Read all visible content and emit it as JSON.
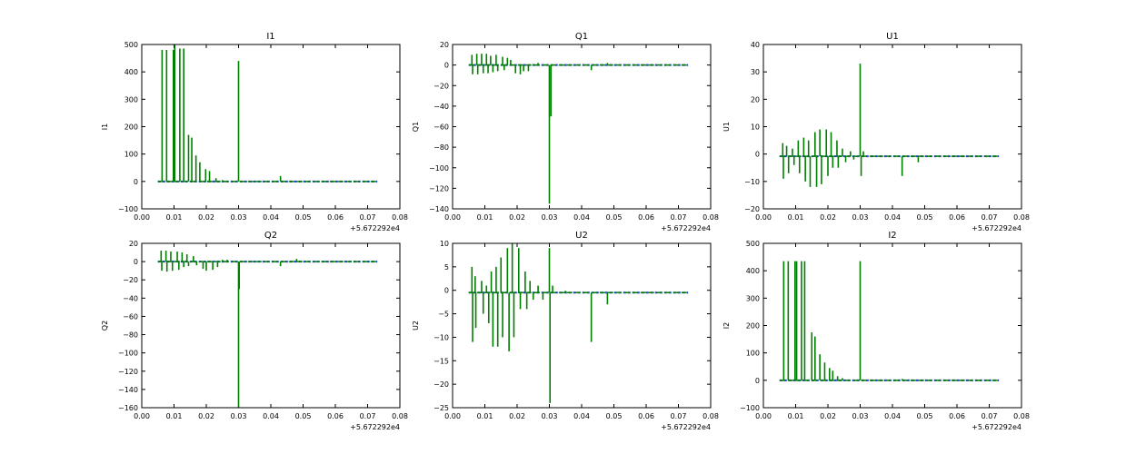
{
  "colors": {
    "series_blue": "#1f3fbf",
    "series_green": "#007f00",
    "frame": "#000000"
  },
  "chart_data": [
    {
      "type": "line",
      "title": "I1",
      "ylabel": "I1",
      "x_offset_label": "+5.672292e4",
      "xlim": [
        0.0,
        0.08
      ],
      "ylim": [
        -100,
        500
      ],
      "xticks": [
        "0.00",
        "0.01",
        "0.02",
        "0.03",
        "0.04",
        "0.05",
        "0.06",
        "0.07",
        "0.08"
      ],
      "yticks": [
        -100,
        0,
        100,
        200,
        300,
        400,
        500
      ],
      "baseline": 0,
      "x_range": [
        0.005,
        0.073
      ],
      "series": [
        {
          "color": "green",
          "spikes": [
            [
              0.0063,
              480
            ],
            [
              0.0077,
              480
            ],
            [
              0.0098,
              480
            ],
            [
              0.0102,
              500
            ],
            [
              0.0118,
              485
            ],
            [
              0.013,
              485
            ],
            [
              0.0145,
              170
            ],
            [
              0.0155,
              160
            ],
            [
              0.0168,
              95
            ],
            [
              0.018,
              70
            ],
            [
              0.0198,
              45
            ],
            [
              0.021,
              38
            ],
            [
              0.023,
              12
            ],
            [
              0.025,
              5
            ],
            [
              0.03,
              440
            ],
            [
              0.043,
              20
            ]
          ]
        }
      ]
    },
    {
      "type": "line",
      "title": "Q1",
      "ylabel": "Q1",
      "x_offset_label": "+5.672292e4",
      "xlim": [
        0.0,
        0.08
      ],
      "ylim": [
        -140,
        20
      ],
      "xticks": [
        "0.00",
        "0.01",
        "0.02",
        "0.03",
        "0.04",
        "0.05",
        "0.06",
        "0.07",
        "0.08"
      ],
      "yticks": [
        -140,
        -120,
        -100,
        -80,
        -60,
        -40,
        -20,
        0,
        20
      ],
      "baseline": 0,
      "x_range": [
        0.005,
        0.073
      ],
      "series": [
        {
          "color": "green",
          "spikes": [
            [
              0.006,
              10
            ],
            [
              0.0062,
              -9
            ],
            [
              0.0075,
              11
            ],
            [
              0.0078,
              -9
            ],
            [
              0.009,
              11
            ],
            [
              0.0095,
              -8
            ],
            [
              0.0105,
              11
            ],
            [
              0.011,
              -8
            ],
            [
              0.0118,
              9
            ],
            [
              0.0125,
              -7
            ],
            [
              0.0135,
              10
            ],
            [
              0.014,
              -6
            ],
            [
              0.0155,
              8
            ],
            [
              0.016,
              -5
            ],
            [
              0.017,
              7
            ],
            [
              0.018,
              5
            ],
            [
              0.0195,
              -8
            ],
            [
              0.021,
              -9
            ],
            [
              0.022,
              -6
            ],
            [
              0.0235,
              -6
            ],
            [
              0.025,
              1
            ],
            [
              0.0265,
              2
            ],
            [
              0.03,
              -135
            ],
            [
              0.0305,
              -50
            ],
            [
              0.043,
              -5
            ],
            [
              0.048,
              2
            ]
          ]
        }
      ]
    },
    {
      "type": "line",
      "title": "U1",
      "ylabel": "U1",
      "x_offset_label": "+5.672292e4",
      "xlim": [
        0.0,
        0.08
      ],
      "ylim": [
        -20,
        40
      ],
      "xticks": [
        "0.00",
        "0.01",
        "0.02",
        "0.03",
        "0.04",
        "0.05",
        "0.06",
        "0.07",
        "0.08"
      ],
      "yticks": [
        -20,
        -10,
        0,
        10,
        20,
        30,
        40
      ],
      "baseline": -0.8,
      "x_range": [
        0.005,
        0.073
      ],
      "series": [
        {
          "color": "green",
          "spikes": [
            [
              0.006,
              4
            ],
            [
              0.0062,
              -9
            ],
            [
              0.0072,
              3
            ],
            [
              0.0078,
              -7
            ],
            [
              0.009,
              2
            ],
            [
              0.0095,
              -4
            ],
            [
              0.0108,
              5
            ],
            [
              0.0112,
              -7
            ],
            [
              0.0125,
              6
            ],
            [
              0.013,
              -10
            ],
            [
              0.014,
              5
            ],
            [
              0.0145,
              -12
            ],
            [
              0.016,
              8
            ],
            [
              0.0165,
              -12
            ],
            [
              0.0175,
              9
            ],
            [
              0.018,
              -11
            ],
            [
              0.0195,
              9
            ],
            [
              0.02,
              -8
            ],
            [
              0.021,
              8
            ],
            [
              0.0215,
              -5
            ],
            [
              0.0228,
              5
            ],
            [
              0.0232,
              -5
            ],
            [
              0.0245,
              2
            ],
            [
              0.0255,
              -3
            ],
            [
              0.027,
              1
            ],
            [
              0.028,
              -2
            ],
            [
              0.03,
              33
            ],
            [
              0.0303,
              -8
            ],
            [
              0.031,
              1
            ],
            [
              0.043,
              -8
            ],
            [
              0.048,
              -3
            ]
          ]
        }
      ]
    },
    {
      "type": "line",
      "title": "Q2",
      "ylabel": "Q2",
      "x_offset_label": "+5.672292e4",
      "xlim": [
        0.0,
        0.08
      ],
      "ylim": [
        -160,
        20
      ],
      "xticks": [
        "0.00",
        "0.01",
        "0.02",
        "0.03",
        "0.04",
        "0.05",
        "0.06",
        "0.07",
        "0.08"
      ],
      "yticks": [
        -160,
        -140,
        -120,
        -100,
        -80,
        -60,
        -40,
        -20,
        0,
        20
      ],
      "baseline": 0,
      "x_range": [
        0.005,
        0.073
      ],
      "series": [
        {
          "color": "green",
          "spikes": [
            [
              0.006,
              12
            ],
            [
              0.0062,
              -10
            ],
            [
              0.0075,
              12
            ],
            [
              0.0078,
              -11
            ],
            [
              0.009,
              11
            ],
            [
              0.0095,
              -10
            ],
            [
              0.011,
              11
            ],
            [
              0.0115,
              -9
            ],
            [
              0.0125,
              10
            ],
            [
              0.013,
              -6
            ],
            [
              0.014,
              8
            ],
            [
              0.0145,
              -5
            ],
            [
              0.016,
              6
            ],
            [
              0.017,
              -4
            ],
            [
              0.019,
              -8
            ],
            [
              0.02,
              -10
            ],
            [
              0.022,
              -9
            ],
            [
              0.0235,
              -6
            ],
            [
              0.025,
              2
            ],
            [
              0.0265,
              2
            ],
            [
              0.03,
              -160
            ],
            [
              0.0302,
              -30
            ],
            [
              0.043,
              -5
            ],
            [
              0.048,
              3
            ]
          ]
        }
      ]
    },
    {
      "type": "line",
      "title": "U2",
      "ylabel": "U2",
      "x_offset_label": "+5.672292e4",
      "xlim": [
        0.0,
        0.08
      ],
      "ylim": [
        -25,
        10
      ],
      "xticks": [
        "0.00",
        "0.01",
        "0.02",
        "0.03",
        "0.04",
        "0.05",
        "0.06",
        "0.07",
        "0.08"
      ],
      "yticks": [
        -25,
        -20,
        -15,
        -10,
        -5,
        0,
        5,
        10
      ],
      "baseline": -0.5,
      "x_range": [
        0.005,
        0.073
      ],
      "series": [
        {
          "color": "green",
          "spikes": [
            [
              0.006,
              5
            ],
            [
              0.0062,
              -11
            ],
            [
              0.007,
              3
            ],
            [
              0.0072,
              -8
            ],
            [
              0.009,
              2
            ],
            [
              0.0095,
              -5
            ],
            [
              0.0105,
              1
            ],
            [
              0.0112,
              -7
            ],
            [
              0.012,
              4
            ],
            [
              0.0125,
              -12
            ],
            [
              0.0135,
              5
            ],
            [
              0.014,
              -12
            ],
            [
              0.015,
              7
            ],
            [
              0.0155,
              -10
            ],
            [
              0.017,
              9
            ],
            [
              0.0175,
              -13
            ],
            [
              0.0185,
              10
            ],
            [
              0.019,
              -10
            ],
            [
              0.0205,
              9
            ],
            [
              0.021,
              -4
            ],
            [
              0.0225,
              4
            ],
            [
              0.023,
              -4
            ],
            [
              0.024,
              2
            ],
            [
              0.025,
              -2
            ],
            [
              0.0265,
              1
            ],
            [
              0.028,
              -2
            ],
            [
              0.03,
              9
            ],
            [
              0.0302,
              -24
            ],
            [
              0.031,
              1
            ],
            [
              0.035,
              -0.1
            ],
            [
              0.043,
              -11
            ],
            [
              0.048,
              -3
            ]
          ]
        }
      ]
    },
    {
      "type": "line",
      "title": "I2",
      "ylabel": "I2",
      "x_offset_label": "+5.672292e4",
      "xlim": [
        0.0,
        0.08
      ],
      "ylim": [
        -100,
        500
      ],
      "xticks": [
        "0.00",
        "0.01",
        "0.02",
        "0.03",
        "0.04",
        "0.05",
        "0.06",
        "0.07",
        "0.08"
      ],
      "yticks": [
        -100,
        0,
        100,
        200,
        300,
        400,
        500
      ],
      "baseline": 0,
      "x_range": [
        0.005,
        0.073
      ],
      "series": [
        {
          "color": "green",
          "spikes": [
            [
              0.0063,
              435
            ],
            [
              0.0077,
              435
            ],
            [
              0.0098,
              435
            ],
            [
              0.0103,
              435
            ],
            [
              0.0118,
              435
            ],
            [
              0.0128,
              435
            ],
            [
              0.015,
              175
            ],
            [
              0.016,
              160
            ],
            [
              0.0175,
              95
            ],
            [
              0.019,
              65
            ],
            [
              0.0205,
              45
            ],
            [
              0.0215,
              35
            ],
            [
              0.023,
              15
            ],
            [
              0.0245,
              8
            ],
            [
              0.03,
              435
            ],
            [
              0.043,
              5
            ]
          ]
        }
      ]
    }
  ]
}
